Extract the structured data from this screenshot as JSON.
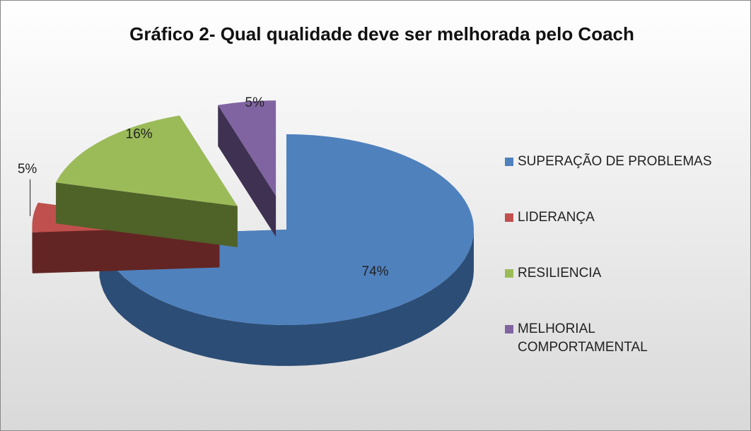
{
  "chart_data": {
    "type": "pie3d",
    "title": "Gráfico 2- Qual qualidade deve ser melhorada pelo Coach",
    "categories": [
      "SUPERAÇÃO DE PROBLEMAS",
      "LIDERANÇA",
      "RESILIENCIA",
      "MELHORIAL COMPORTAMENTAL"
    ],
    "values": [
      74,
      5,
      16,
      5
    ],
    "value_labels": [
      "74%",
      "5%",
      "16%",
      "5%"
    ],
    "colors": [
      "#4f81bd",
      "#c0504d",
      "#9bbb59",
      "#8064a2"
    ],
    "side_colors": [
      "#2c4d75",
      "#632523",
      "#4f6228",
      "#3f3151"
    ],
    "legend": "right"
  }
}
